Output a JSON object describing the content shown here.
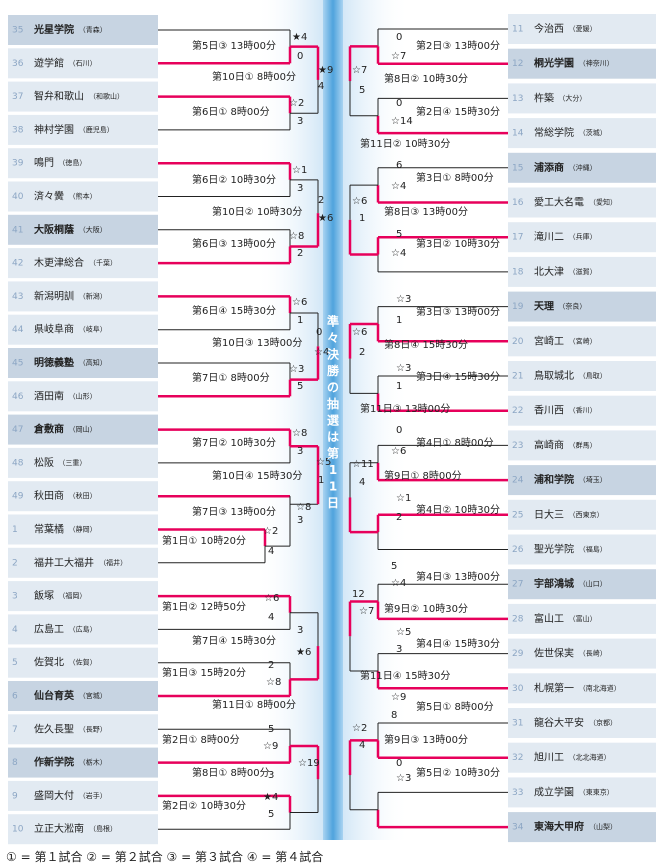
{
  "center_banner": "準々決勝の抽選は第11日",
  "legend": "① = 第１試合 ② = 第２試合 ③ = 第３試合 ④ = 第４試合",
  "colors": {
    "line": "#e7005b",
    "lost_line": "#222222",
    "row_light": "#e2eaf2",
    "row_dark": "#c7d4e2",
    "num": "#8ca6c4",
    "center": "#6fb5e5"
  },
  "left_teams": [
    {
      "num": "35",
      "name": "光星学院",
      "pref": "（青森）",
      "highlight": true
    },
    {
      "num": "36",
      "name": "遊学館",
      "pref": "（石川）",
      "highlight": false
    },
    {
      "num": "37",
      "name": "智弁和歌山",
      "pref": "（和歌山）",
      "highlight": false
    },
    {
      "num": "38",
      "name": "神村学園",
      "pref": "（鹿児島）",
      "highlight": false
    },
    {
      "num": "39",
      "name": "鳴門",
      "pref": "（徳島）",
      "highlight": false
    },
    {
      "num": "40",
      "name": "済々黌",
      "pref": "（熊本）",
      "highlight": false
    },
    {
      "num": "41",
      "name": "大阪桐蔭",
      "pref": "（大阪）",
      "highlight": true
    },
    {
      "num": "42",
      "name": "木更津総合",
      "pref": "（千葉）",
      "highlight": false
    },
    {
      "num": "43",
      "name": "新潟明訓",
      "pref": "（新潟）",
      "highlight": false
    },
    {
      "num": "44",
      "name": "県岐阜商",
      "pref": "（岐阜）",
      "highlight": false
    },
    {
      "num": "45",
      "name": "明徳義塾",
      "pref": "（高知）",
      "highlight": true
    },
    {
      "num": "46",
      "name": "酒田南",
      "pref": "（山形）",
      "highlight": false
    },
    {
      "num": "47",
      "name": "倉敷商",
      "pref": "（岡山）",
      "highlight": true
    },
    {
      "num": "48",
      "name": "松阪",
      "pref": "（三重）",
      "highlight": false
    },
    {
      "num": "49",
      "name": "秋田商",
      "pref": "（秋田）",
      "highlight": false
    },
    {
      "num": "1",
      "name": "常葉橘",
      "pref": "（静岡）",
      "highlight": false
    },
    {
      "num": "2",
      "name": "福井工大福井",
      "pref": "（福井）",
      "highlight": false
    },
    {
      "num": "3",
      "name": "飯塚",
      "pref": "（福岡）",
      "highlight": false
    },
    {
      "num": "4",
      "name": "広島工",
      "pref": "（広島）",
      "highlight": false
    },
    {
      "num": "5",
      "name": "佐賀北",
      "pref": "（佐賀）",
      "highlight": false
    },
    {
      "num": "6",
      "name": "仙台育英",
      "pref": "（宮城）",
      "highlight": true
    },
    {
      "num": "7",
      "name": "佐久長聖",
      "pref": "（長野）",
      "highlight": false
    },
    {
      "num": "8",
      "name": "作新学院",
      "pref": "（栃木）",
      "highlight": true
    },
    {
      "num": "9",
      "name": "盛岡大付",
      "pref": "（岩手）",
      "highlight": false
    },
    {
      "num": "10",
      "name": "立正大淞南",
      "pref": "（島根）",
      "highlight": false
    }
  ],
  "right_teams": [
    {
      "num": "11",
      "name": "今治西",
      "pref": "（愛媛）",
      "highlight": false
    },
    {
      "num": "12",
      "name": "桐光学園",
      "pref": "（神奈川）",
      "highlight": true
    },
    {
      "num": "13",
      "name": "杵築",
      "pref": "（大分）",
      "highlight": false
    },
    {
      "num": "14",
      "name": "常総学院",
      "pref": "（茨城）",
      "highlight": false
    },
    {
      "num": "15",
      "name": "浦添商",
      "pref": "（沖縄）",
      "highlight": true
    },
    {
      "num": "16",
      "name": "愛工大名電",
      "pref": "（愛知）",
      "highlight": false
    },
    {
      "num": "17",
      "name": "滝川二",
      "pref": "（兵庫）",
      "highlight": false
    },
    {
      "num": "18",
      "name": "北大津",
      "pref": "（滋賀）",
      "highlight": false
    },
    {
      "num": "19",
      "name": "天理",
      "pref": "（奈良）",
      "highlight": true
    },
    {
      "num": "20",
      "name": "宮崎工",
      "pref": "（宮崎）",
      "highlight": false
    },
    {
      "num": "21",
      "name": "鳥取城北",
      "pref": "（鳥取）",
      "highlight": false
    },
    {
      "num": "22",
      "name": "香川西",
      "pref": "（香川）",
      "highlight": false
    },
    {
      "num": "23",
      "name": "高崎商",
      "pref": "（群馬）",
      "highlight": false
    },
    {
      "num": "24",
      "name": "浦和学院",
      "pref": "（埼玉）",
      "highlight": true
    },
    {
      "num": "25",
      "name": "日大三",
      "pref": "（西東京）",
      "highlight": false
    },
    {
      "num": "26",
      "name": "聖光学院",
      "pref": "（福島）",
      "highlight": false
    },
    {
      "num": "27",
      "name": "宇部鴻城",
      "pref": "（山口）",
      "highlight": true
    },
    {
      "num": "28",
      "name": "富山工",
      "pref": "（富山）",
      "highlight": false
    },
    {
      "num": "29",
      "name": "佐世保実",
      "pref": "（長崎）",
      "highlight": false
    },
    {
      "num": "30",
      "name": "札幌第一",
      "pref": "（南北海道）",
      "highlight": false
    },
    {
      "num": "31",
      "name": "龍谷大平安",
      "pref": "（京都）",
      "highlight": false
    },
    {
      "num": "32",
      "name": "旭川工",
      "pref": "（北北海道）",
      "highlight": false
    },
    {
      "num": "33",
      "name": "成立学園",
      "pref": "（東東京）",
      "highlight": false
    },
    {
      "num": "34",
      "name": "東海大甲府",
      "pref": "（山梨）",
      "highlight": true
    }
  ],
  "game_labels": [
    "第5日③ 13時00分",
    "第10日① 8時00分",
    "第6日① 8時00分",
    "第6日② 10時30分",
    "第10日② 10時30分",
    "第6日③ 13時00分",
    "第6日④ 15時30分",
    "第10日③ 13時00分",
    "第7日① 8時00分",
    "第7日② 10時30分",
    "第10日④ 15時30分",
    "第7日③ 13時00分",
    "第1日① 10時20分",
    "第1日② 12時50分",
    "第7日④ 15時30分",
    "第1日③ 15時20分",
    "第11日① 8時00分",
    "第2日① 8時00分",
    "第8日① 8時00分",
    "第2日② 10時30分",
    "第2日③ 13時00分",
    "第8日② 10時30分",
    "第2日④ 15時30分",
    "第11日② 10時30分",
    "第3日① 8時00分",
    "第8日③ 13時00分",
    "第3日② 10時30分",
    "第3日③ 13時00分",
    "第8日④ 15時30分",
    "第3日④ 15時30分",
    "第11日③ 13時00分",
    "第4日① 8時00分",
    "第9日① 8時00分",
    "第4日② 10時30分",
    "第4日③ 13時00分",
    "第9日② 10時30分",
    "第4日④ 15時30分",
    "第11日④ 15時30分",
    "第5日① 8時00分",
    "第9日③ 13時00分",
    "第5日② 10時30分"
  ],
  "scores": [
    "★4",
    "0",
    "★9",
    "4",
    "☆2",
    "3",
    "☆1",
    "3",
    "2",
    "★6",
    "☆8",
    "2",
    "☆6",
    "1",
    "0",
    "☆4",
    "☆3",
    "5",
    "☆8",
    "3",
    "☆5",
    "1",
    "☆8",
    "3",
    "☆2",
    "4",
    "☆6",
    "4",
    "3",
    "★6",
    "2",
    "☆8",
    "5",
    "☆9",
    "☆19",
    "3",
    "★4",
    "5",
    "0",
    "☆7",
    "☆7",
    "5",
    "0",
    "☆14",
    "6",
    "☆4",
    "☆6",
    "1",
    "5",
    "☆4",
    "☆3",
    "1",
    "☆6",
    "2",
    "☆3",
    "1",
    "0",
    "☆6",
    "☆11",
    "4",
    "☆1",
    "2",
    "5",
    "☆4",
    "12",
    "☆7",
    "☆5",
    "3",
    "☆9",
    "8",
    "☆2",
    "4",
    "0",
    "☆3"
  ]
}
